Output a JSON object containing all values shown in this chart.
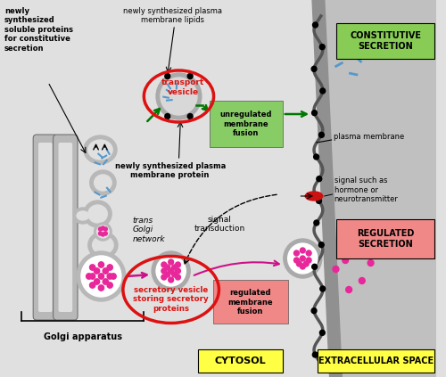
{
  "bg_cytosol": "#e0e0e0",
  "bg_extracellular": "#c0c0c0",
  "golgi_color": "#b8b8b8",
  "pink_color": "#e8279a",
  "blue_dash_color": "#5599cc",
  "red_outline_color": "#dd1111",
  "green_box_color": "#88cc66",
  "pink_box_color": "#f08888",
  "yellow_box_color": "#ffff44",
  "green_arrow_color": "#007700",
  "pink_arrow_color": "#cc1188",
  "constitutive_label": "CONSTITUTIVE\nSECRETION",
  "regulated_label": "REGULATED\nSECRETION",
  "cytosol_label": "CYTOSOL",
  "extracellular_label": "EXTRACELLULAR SPACE",
  "golgi_apparatus_label": "Golgi apparatus",
  "trans_golgi_label": "trans\nGolgi\nnetwork",
  "transport_vesicle_label": "transport\nvesicle",
  "unregulated_label": "unregulated\nmembrane\nfusion",
  "plasma_membrane_label": "plasma membrane",
  "signal_label": "signal such as\nhormone or\nneurotransmitter",
  "signal_transduction_label": "signal\ntransduction",
  "secretory_vesicle_label": "secretory vesicle\nstoring secretory\nproteins",
  "regulated_fusion_label": "regulated\nmembrane\nfusion",
  "newly_synth_lipids_label": "newly synthesized plasma\nmembrane lipids",
  "newly_synth_protein_label": "newly synthesized plasma\nmembrane protein",
  "newly_synth_soluble_label": "newly\nsynthesized\nsoluble proteins\nfor constitutive\nsecretion"
}
